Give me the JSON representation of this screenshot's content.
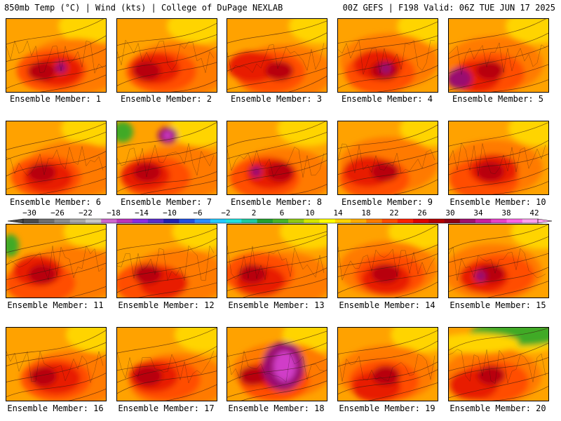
{
  "header": {
    "left": "850mb Temp (°C) | Wind (kts) | College of DuPage NEXLAB",
    "right": "00Z GEFS | F198 Valid: 06Z TUE JUN 17 2025"
  },
  "panels": [
    {
      "label": "Ensemble Member: 1"
    },
    {
      "label": "Ensemble Member: 2"
    },
    {
      "label": "Ensemble Member: 3"
    },
    {
      "label": "Ensemble Member: 4"
    },
    {
      "label": "Ensemble Member: 5"
    },
    {
      "label": "Ensemble Member: 6"
    },
    {
      "label": "Ensemble Member: 7"
    },
    {
      "label": "Ensemble Member: 8"
    },
    {
      "label": "Ensemble Member: 9"
    },
    {
      "label": "Ensemble Member: 10"
    },
    {
      "label": "Ensemble Member: 11"
    },
    {
      "label": "Ensemble Member: 12"
    },
    {
      "label": "Ensemble Member: 13"
    },
    {
      "label": "Ensemble Member: 14"
    },
    {
      "label": "Ensemble Member: 15"
    },
    {
      "label": "Ensemble Member: 16"
    },
    {
      "label": "Ensemble Member: 17"
    },
    {
      "label": "Ensemble Member: 18"
    },
    {
      "label": "Ensemble Member: 19"
    },
    {
      "label": "Ensemble Member: 20"
    }
  ],
  "colorbar": {
    "labels": [
      "−30",
      "−26",
      "−22",
      "−18",
      "−14",
      "−10",
      "−6",
      "−2",
      "2",
      "6",
      "10",
      "14",
      "18",
      "22",
      "26",
      "30",
      "34",
      "38",
      "42"
    ],
    "colors": [
      "#4a4a4a",
      "#6e6e6e",
      "#8c8c8c",
      "#a8a8a8",
      "#c8c8c8",
      "#cc66cc",
      "#bb33bb",
      "#8a2be2",
      "#5a2dcc",
      "#2020b0",
      "#2050e0",
      "#2a8cff",
      "#22c8ff",
      "#1ee0e0",
      "#1cc8a0",
      "#22a030",
      "#46b428",
      "#8cc814",
      "#d2e600",
      "#ffff00",
      "#ffd200",
      "#ffaa00",
      "#ff7a00",
      "#ff4a00",
      "#ff2000",
      "#dd0000",
      "#b40000",
      "#8c0014",
      "#a0106e",
      "#c81ea0",
      "#e640c8",
      "#ff64e6",
      "#ffa0f0"
    ]
  },
  "temperature_palette": {
    "yellow": "#ffd400",
    "orange": "#ffa200",
    "dark_orange": "#ff7a00",
    "red_orange": "#ff4d00",
    "red": "#e81c00",
    "dark_red": "#b8000a",
    "purple": "#9a1070",
    "magenta": "#d03cc8",
    "green": "#3faa28"
  }
}
